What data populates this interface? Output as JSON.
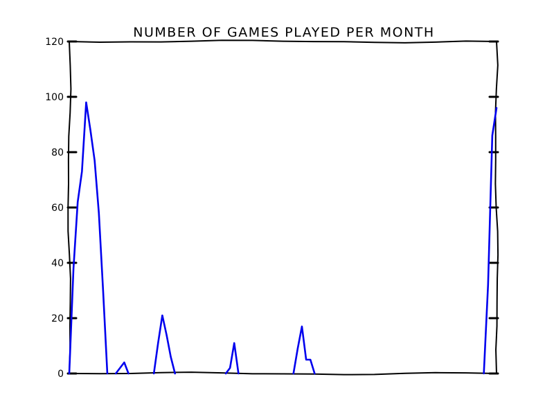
{
  "chart_data": {
    "type": "line",
    "style": "xkcd",
    "title": "NUMBER OF GAMES PLAYED PER MONTH",
    "xlabel": "",
    "ylabel": "",
    "ylim": [
      0,
      120
    ],
    "yticks": [
      "0",
      "20",
      "40",
      "60",
      "80",
      "100",
      "120"
    ],
    "grid": false,
    "legend": "none",
    "series_color": "#0000ee",
    "series": [
      {
        "segments": [
          [
            [
              0,
              0
            ],
            [
              1,
              38
            ],
            [
              2,
              62
            ],
            [
              3,
              73
            ],
            [
              4,
              98
            ],
            [
              5,
              88
            ],
            [
              6,
              77
            ],
            [
              7,
              58
            ],
            [
              8,
              30
            ],
            [
              9,
              0
            ]
          ],
          [
            [
              11,
              0
            ],
            [
              12,
              2
            ],
            [
              13,
              4
            ],
            [
              14,
              0
            ]
          ],
          [
            [
              20,
              0
            ],
            [
              21,
              11
            ],
            [
              22,
              21
            ],
            [
              23,
              14
            ],
            [
              24,
              6
            ],
            [
              25,
              0
            ]
          ],
          [
            [
              37,
              0
            ],
            [
              38,
              2
            ],
            [
              39,
              11
            ],
            [
              40,
              0
            ]
          ],
          [
            [
              53,
              0
            ],
            [
              54,
              9
            ],
            [
              55,
              17
            ],
            [
              56,
              5
            ],
            [
              57,
              5
            ],
            [
              58,
              0
            ]
          ],
          [
            [
              98,
              0
            ],
            [
              99,
              32
            ],
            [
              100,
              86
            ],
            [
              101,
              96
            ]
          ]
        ]
      }
    ],
    "xlim": [
      0,
      101
    ]
  }
}
